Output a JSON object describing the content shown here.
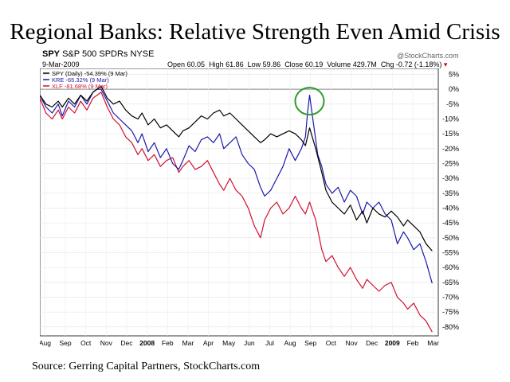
{
  "title": "Regional Banks: Relative Strength Even Amid Crisis",
  "source": "Source: Gerring Capital Partners, StockCharts.com",
  "header": {
    "symbol": "SPY",
    "name": "S&P 500 SPDRs",
    "exchange": "NYSE",
    "date": "9-Mar-2009",
    "watermark": "@StockCharts.com",
    "open": "Open 60.05",
    "high": "High 61.86",
    "low": "Low 59.86",
    "close": "Close 60.19",
    "volume": "Volume 429.7M",
    "change": "Chg -0.72 (-1.18%)"
  },
  "colors": {
    "spy": "#000000",
    "kre": "#1a1aa8",
    "xlf": "#d01030",
    "circle": "#2a9a2a"
  },
  "chart_data": {
    "type": "line",
    "x_labels": [
      "Aug",
      "Sep",
      "Oct",
      "Nov",
      "Dec",
      "2008",
      "Feb",
      "Mar",
      "Apr",
      "May",
      "Jun",
      "Jul",
      "Aug",
      "Sep",
      "Oct",
      "Nov",
      "Dec",
      "2009",
      "Feb",
      "Mar"
    ],
    "bold_x_labels": [
      "2008",
      "2009"
    ],
    "y_ticks": [
      "5%",
      "0%",
      "-5%",
      "-10%",
      "-15%",
      "-20%",
      "-25%",
      "-30%",
      "-35%",
      "-40%",
      "-45%",
      "-50%",
      "-55%",
      "-60%",
      "-65%",
      "-70%",
      "-75%",
      "-80%"
    ],
    "ylim": [
      -83,
      7
    ],
    "xlim": [
      0,
      19.5
    ],
    "series": [
      {
        "name": "SPY (Daily) -54.39% (9 Mar)",
        "key": "spy",
        "x": [
          0,
          0.3,
          0.6,
          0.9,
          1.1,
          1.4,
          1.7,
          2,
          2.3,
          2.6,
          2.8,
          3,
          3.3,
          3.6,
          3.9,
          4.2,
          4.5,
          4.8,
          5,
          5.3,
          5.6,
          5.9,
          6.2,
          6.5,
          6.8,
          7,
          7.3,
          7.6,
          7.9,
          8.2,
          8.5,
          8.8,
          9,
          9.3,
          9.6,
          9.9,
          10.2,
          10.5,
          10.8,
          11,
          11.3,
          11.6,
          11.9,
          12.2,
          12.5,
          12.8,
          13,
          13.2,
          13.5,
          13.8,
          14,
          14.3,
          14.6,
          14.9,
          15.2,
          15.5,
          15.8,
          16,
          16.3,
          16.6,
          16.9,
          17.2,
          17.5,
          17.8,
          18,
          18.3,
          18.6,
          18.9,
          19.2
        ],
        "y": [
          -2,
          -5,
          -6,
          -4,
          -6,
          -3,
          -5,
          -2,
          -4,
          -1,
          0,
          1,
          -3,
          -5,
          -4,
          -7,
          -9,
          -10,
          -8,
          -12,
          -10,
          -13,
          -12,
          -14,
          -16,
          -14,
          -13,
          -11,
          -9,
          -10,
          -8,
          -7,
          -9,
          -8,
          -10,
          -12,
          -14,
          -16,
          -18,
          -17,
          -15,
          -16,
          -15,
          -14,
          -15,
          -17,
          -19,
          -13,
          -20,
          -28,
          -34,
          -38,
          -40,
          -42,
          -39,
          -44,
          -41,
          -45,
          -40,
          -42,
          -43,
          -41,
          -43,
          -46,
          -44,
          -46,
          -48,
          -52,
          -54.4
        ]
      },
      {
        "name": "KRE -65.32% (9 Mar)",
        "key": "kre",
        "x": [
          0,
          0.3,
          0.6,
          0.9,
          1.1,
          1.4,
          1.7,
          2,
          2.3,
          2.6,
          2.8,
          3,
          3.3,
          3.6,
          3.9,
          4.2,
          4.5,
          4.8,
          5,
          5.3,
          5.6,
          5.9,
          6.2,
          6.5,
          6.8,
          7,
          7.3,
          7.6,
          7.9,
          8.2,
          8.5,
          8.8,
          9,
          9.3,
          9.6,
          9.9,
          10.2,
          10.5,
          10.8,
          11,
          11.3,
          11.6,
          11.9,
          12.2,
          12.5,
          12.8,
          13,
          13.1,
          13.2,
          13.4,
          13.6,
          13.8,
          14,
          14.3,
          14.6,
          14.9,
          15.2,
          15.5,
          15.8,
          16,
          16.3,
          16.6,
          16.9,
          17.2,
          17.5,
          17.8,
          18,
          18.3,
          18.6,
          18.9,
          19.2
        ],
        "y": [
          -2,
          -6,
          -8,
          -5,
          -9,
          -4,
          -6,
          -2,
          -5,
          -1,
          0,
          0,
          -4,
          -8,
          -10,
          -12,
          -14,
          -18,
          -15,
          -21,
          -18,
          -23,
          -20,
          -25,
          -27,
          -24,
          -19,
          -21,
          -17,
          -16,
          -18,
          -15,
          -20,
          -18,
          -16,
          -22,
          -25,
          -27,
          -33,
          -36,
          -34,
          -30,
          -26,
          -20,
          -24,
          -20,
          -16,
          -8,
          -2,
          -12,
          -22,
          -26,
          -32,
          -35,
          -33,
          -38,
          -34,
          -36,
          -42,
          -38,
          -40,
          -38,
          -42,
          -44,
          -52,
          -48,
          -50,
          -54,
          -52,
          -58,
          -65.3
        ]
      },
      {
        "name": "XLF -81.68% (9 Mar)",
        "key": "xlf",
        "x": [
          0,
          0.3,
          0.6,
          0.9,
          1.1,
          1.4,
          1.7,
          2,
          2.3,
          2.6,
          2.8,
          3,
          3.3,
          3.6,
          3.9,
          4.2,
          4.5,
          4.8,
          5,
          5.3,
          5.6,
          5.9,
          6.2,
          6.5,
          6.8,
          7,
          7.3,
          7.6,
          7.9,
          8.2,
          8.5,
          8.8,
          9,
          9.3,
          9.6,
          9.9,
          10.2,
          10.5,
          10.8,
          11,
          11.3,
          11.6,
          11.9,
          12.2,
          12.5,
          12.8,
          13,
          13.2,
          13.5,
          13.8,
          14,
          14.3,
          14.6,
          14.9,
          15.2,
          15.5,
          15.8,
          16,
          16.3,
          16.6,
          16.9,
          17.2,
          17.5,
          17.8,
          18,
          18.3,
          18.6,
          18.9,
          19.2
        ],
        "y": [
          -3,
          -8,
          -10,
          -7,
          -10,
          -6,
          -8,
          -4,
          -7,
          -3,
          -2,
          -1,
          -6,
          -10,
          -12,
          -16,
          -18,
          -22,
          -20,
          -24,
          -22,
          -26,
          -24,
          -23,
          -28,
          -26,
          -24,
          -27,
          -26,
          -24,
          -28,
          -32,
          -34,
          -30,
          -34,
          -36,
          -40,
          -46,
          -50,
          -44,
          -40,
          -38,
          -42,
          -40,
          -36,
          -40,
          -42,
          -38,
          -44,
          -54,
          -58,
          -56,
          -60,
          -63,
          -60,
          -64,
          -67,
          -64,
          -66,
          -68,
          -66,
          -65,
          -70,
          -72,
          -74,
          -72,
          -76,
          -78,
          -81.7
        ]
      }
    ],
    "annotation": {
      "type": "circle",
      "x": 13.2,
      "y": -4
    }
  }
}
